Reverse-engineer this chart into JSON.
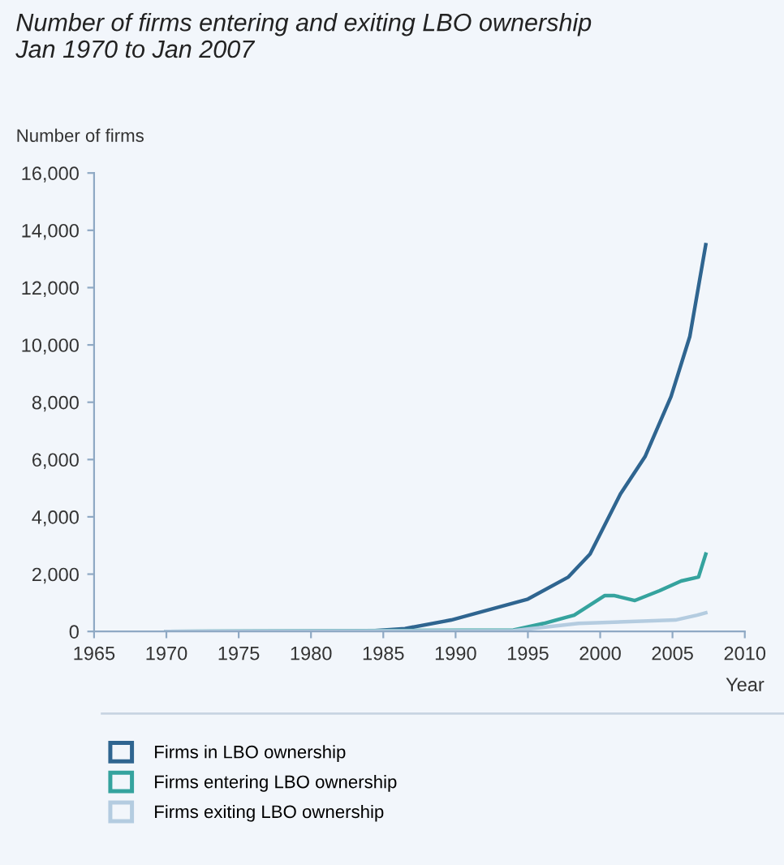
{
  "chart_data": {
    "type": "line",
    "title": "Number of firms entering and exiting LBO ownership\nJan 1970 to Jan 2007",
    "ylabel": "Number of firms",
    "xlabel": "Year",
    "series": [
      {
        "name": "Firms in LBO ownership",
        "color": "#2f6590",
        "x": [
          1970,
          1983.6,
          1986.5,
          1989.7,
          1995,
          1997.8,
          1999.3,
          2001.4,
          2003.1,
          2004.9,
          2006.2,
          2007.3
        ],
        "values": [
          0,
          0,
          100,
          400,
          1130,
          1900,
          2700,
          4800,
          6100,
          8200,
          10300,
          13500
        ]
      },
      {
        "name": "Firms entering LBO ownership",
        "color": "#35a39e",
        "x": [
          1970,
          1994,
          1996.1,
          1998.2,
          2000.3,
          2001,
          2002.4,
          2004.1,
          2005.6,
          2006.8,
          2007.3
        ],
        "values": [
          0,
          50,
          280,
          570,
          1250,
          1250,
          1080,
          1420,
          1760,
          1900,
          2700
        ]
      },
      {
        "name": "Firms exiting LBO ownership",
        "color": "#b4cce0",
        "x": [
          1970,
          1994,
          1998.5,
          2005.2,
          2006.7,
          2007.3
        ],
        "values": [
          0,
          30,
          280,
          400,
          570,
          650
        ]
      }
    ],
    "xlim": [
      1965,
      2010
    ],
    "xticks": [
      1965,
      1970,
      1975,
      1980,
      1985,
      1990,
      1995,
      2000,
      2005,
      2010
    ],
    "ylim": [
      0,
      16000
    ],
    "yticks": [
      {
        "value": 0,
        "label": "0"
      },
      {
        "value": 2000,
        "label": "2,000"
      },
      {
        "value": 4000,
        "label": "4,000"
      },
      {
        "value": 6000,
        "label": "6,000"
      },
      {
        "value": 8000,
        "label": "8,000"
      },
      {
        "value": 10000,
        "label": "10,000"
      },
      {
        "value": 12000,
        "label": "12,000"
      },
      {
        "value": 14000,
        "label": "14,000"
      },
      {
        "value": 16000,
        "label": "16,000"
      }
    ],
    "grid": false,
    "legend": "bottom",
    "marker": "none",
    "line_style": "solid"
  }
}
